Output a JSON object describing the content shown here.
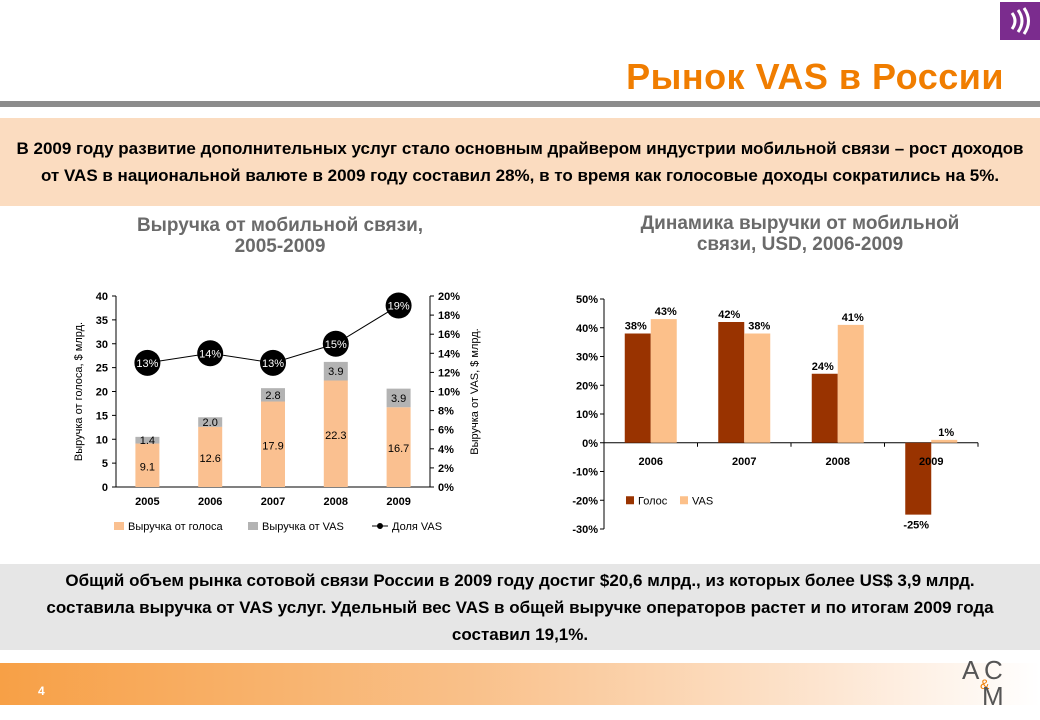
{
  "page": {
    "title": "Рынок VAS в России",
    "number": "4",
    "logo_letters": [
      "A",
      "C",
      "&",
      "M"
    ]
  },
  "banner_top": "В 2009 году развитие дополнительных услуг стало основным драйвером индустрии мобильной связи – рост доходов от VAS в национальной валюте в 2009 году составил 28%, в то время как голосовые доходы сократились на 5%.",
  "banner_bottom": "Общий объем рынка сотовой связи России в 2009 году достиг $20,6 млрд., из которых более US$ 3,9 млрд. составила выручка от VAS услуг. Удельный вес VAS в общей выручке операторов растет и по итогам 2009 года составил 19,1%.",
  "colors": {
    "accent_orange": "#f07d00",
    "voice_light": "#fac090",
    "vas_gray": "#b3b3b3",
    "voice_dark": "#993300",
    "vas_peach": "#fcc08a",
    "logo_purple": "#7b2c8e"
  },
  "chart_data": [
    {
      "type": "bar",
      "stacked": true,
      "title_lines": [
        "Выручка от мобильной связи,",
        "2005-2009"
      ],
      "categories": [
        "2005",
        "2006",
        "2007",
        "2008",
        "2009"
      ],
      "series": [
        {
          "name": "Выручка от голоса",
          "values": [
            9.1,
            12.6,
            17.9,
            22.3,
            16.7
          ],
          "labels": [
            "9.1",
            "12.6",
            "17.9",
            "22.3",
            "16.7"
          ]
        },
        {
          "name": "Выручка от VAS",
          "values": [
            1.4,
            2.0,
            2.8,
            3.9,
            3.9
          ],
          "labels": [
            "1.4",
            "2.0",
            "2.8",
            "3.9",
            "3.9"
          ]
        }
      ],
      "line_series": {
        "name": "Доля VAS",
        "values": [
          13,
          14,
          13,
          15,
          19
        ],
        "labels": [
          "13%",
          "14%",
          "13%",
          "15%",
          "19%"
        ]
      },
      "ylabel": "Выручка от голоса, $ млрд.",
      "y2label": "Выручка от VAS, $ млрд.",
      "ylim": [
        0,
        40
      ],
      "y2lim": [
        0,
        20
      ],
      "yticks": [
        "0",
        "5",
        "10",
        "15",
        "20",
        "25",
        "30",
        "35",
        "40"
      ],
      "y2ticks": [
        "0%",
        "2%",
        "4%",
        "6%",
        "8%",
        "10%",
        "12%",
        "14%",
        "16%",
        "18%",
        "20%"
      ],
      "legend": [
        "Выручка от голоса",
        "Выручка от VAS",
        "Доля VAS"
      ],
      "legend_position": "bottom"
    },
    {
      "type": "bar",
      "title_lines": [
        "Динамика выручки от мобильной",
        "связи, USD, 2006-2009"
      ],
      "categories": [
        "2006",
        "2007",
        "2008",
        "2009"
      ],
      "series": [
        {
          "name": "Голос",
          "values": [
            38,
            42,
            24,
            -25
          ],
          "labels": [
            "38%",
            "42%",
            "24%",
            "-25%"
          ]
        },
        {
          "name": "VAS",
          "values": [
            43,
            38,
            41,
            1
          ],
          "labels": [
            "43%",
            "38%",
            "41%",
            "1%"
          ]
        }
      ],
      "ylim": [
        -30,
        50
      ],
      "yticks": [
        "-30%",
        "-20%",
        "-10%",
        "0%",
        "10%",
        "20%",
        "30%",
        "40%",
        "50%"
      ],
      "legend": [
        "Голос",
        "VAS"
      ],
      "legend_position": "bottom-left"
    }
  ]
}
